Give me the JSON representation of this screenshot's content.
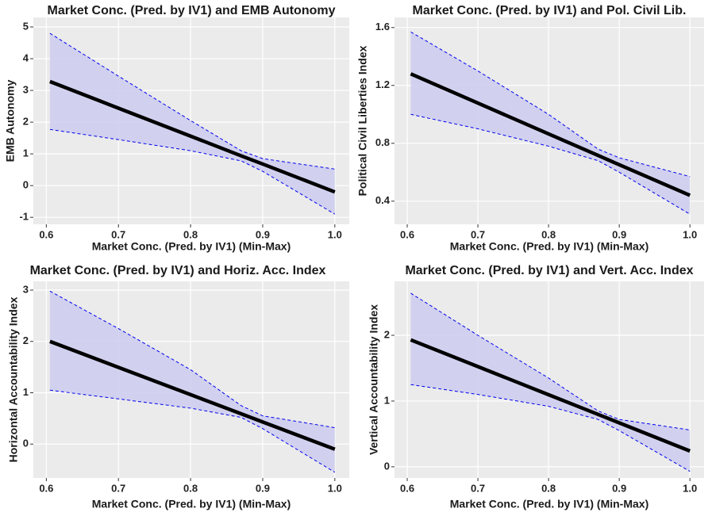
{
  "chart_data": [
    {
      "type": "line",
      "title": "Market Conc. (Pred. by IV1) and EMB Autonomy",
      "x_label": "Market Conc. (Pred. by IV1) (Min-Max)",
      "y_label": "EMB Autonomy",
      "x": [
        0.605,
        0.7,
        0.8,
        0.87,
        0.9,
        1.0
      ],
      "values": [
        3.28,
        2.44,
        1.56,
        0.94,
        0.68,
        -0.2
      ],
      "upper": [
        4.8,
        3.45,
        2.05,
        1.1,
        0.85,
        0.52
      ],
      "lower": [
        1.77,
        1.45,
        1.1,
        0.78,
        0.45,
        -0.9
      ],
      "line_color": "#000000",
      "band_color": "#ccccf0",
      "bound_color": "#0000ee",
      "xlim": [
        0.582,
        1.02
      ],
      "ylim": [
        -1.22,
        5.3
      ],
      "xticks": [
        0.6,
        0.7,
        0.8,
        0.9,
        {
          "value": 1,
          "label": "1.0"
        }
      ],
      "yticks": [
        -1,
        0,
        1,
        2,
        3,
        4,
        5
      ],
      "grid": true
    },
    {
      "type": "line",
      "title": "Market Conc. (Pred. by IV1) and Pol. Civil Lib.",
      "x_label": "Market Conc. (Pred. by IV1) (Min-Max)",
      "y_label": "Political Civil Liberties Index",
      "x": [
        0.605,
        0.7,
        0.8,
        0.87,
        0.9,
        1.0
      ],
      "values": [
        1.28,
        1.078,
        0.865,
        0.716,
        0.652,
        0.44
      ],
      "upper": [
        1.57,
        1.3,
        1.0,
        0.76,
        0.7,
        0.57
      ],
      "lower": [
        1.0,
        0.9,
        0.78,
        0.68,
        0.6,
        0.31
      ],
      "line_color": "#000000",
      "band_color": "#ccccf0",
      "bound_color": "#0000ee",
      "xlim": [
        0.582,
        1.02
      ],
      "ylim": [
        0.24,
        1.67
      ],
      "xticks": [
        0.6,
        0.7,
        0.8,
        0.9,
        {
          "value": 1,
          "label": "1.0"
        }
      ],
      "yticks": [
        0.4,
        0.8,
        1.2,
        1.6
      ],
      "grid": true
    },
    {
      "type": "line",
      "title": "Market Conc. (Pred. by IV1) and Horiz. Acc. Index",
      "x_label": "Market Conc. (Pred. by IV1) (Min-Max)",
      "y_label": "Horizontal Accountability Index",
      "x": [
        0.605,
        0.7,
        0.8,
        0.87,
        0.9,
        1.0
      ],
      "values": [
        2.0,
        1.495,
        0.963,
        0.591,
        0.431,
        -0.1
      ],
      "upper": [
        2.98,
        2.25,
        1.45,
        0.75,
        0.55,
        0.32
      ],
      "lower": [
        1.05,
        0.88,
        0.7,
        0.52,
        0.3,
        -0.55
      ],
      "line_color": "#000000",
      "band_color": "#ccccf0",
      "bound_color": "#0000ee",
      "xlim": [
        0.582,
        1.02
      ],
      "ylim": [
        -0.66,
        3.17
      ],
      "xticks": [
        0.6,
        0.7,
        0.8,
        0.9,
        {
          "value": 1,
          "label": "1.0"
        }
      ],
      "yticks": [
        0,
        1,
        2,
        3
      ],
      "grid": true
    },
    {
      "type": "line",
      "title": "Market Conc. (Pred. by IV1) and Vert. Acc. Index",
      "x_label": "Market Conc. (Pred. by IV1) (Min-Max)",
      "y_label": "Vertical Accountability Index",
      "x": [
        0.605,
        0.7,
        0.8,
        0.87,
        0.9,
        1.0
      ],
      "values": [
        1.93,
        1.524,
        1.096,
        0.797,
        0.668,
        0.24
      ],
      "upper": [
        2.64,
        2.0,
        1.35,
        0.85,
        0.72,
        0.56
      ],
      "lower": [
        1.25,
        1.1,
        0.92,
        0.72,
        0.55,
        -0.07
      ],
      "line_color": "#000000",
      "band_color": "#ccccf0",
      "bound_color": "#0000ee",
      "xlim": [
        0.582,
        1.02
      ],
      "ylim": [
        -0.17,
        2.82
      ],
      "xticks": [
        0.6,
        0.7,
        0.8,
        0.9,
        {
          "value": 1,
          "label": "1.0"
        }
      ],
      "yticks": [
        0,
        1,
        2
      ],
      "grid": true
    }
  ]
}
